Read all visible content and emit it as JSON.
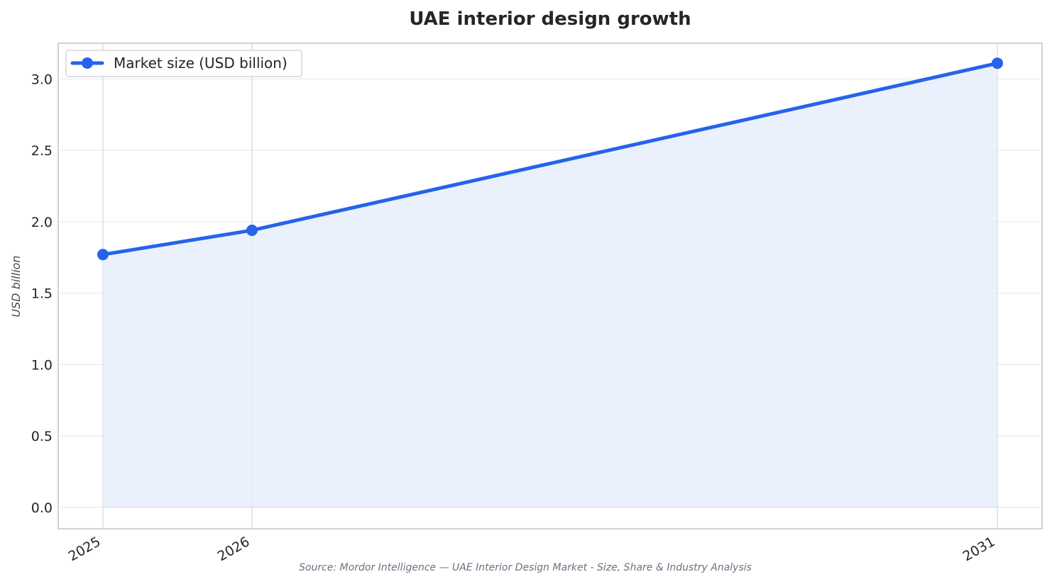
{
  "chart_data": {
    "type": "area",
    "title": "UAE interior design growth",
    "xlabel": "",
    "ylabel": "USD billion",
    "categories": [
      "2025",
      "2026",
      "2031"
    ],
    "x": [
      2025,
      2026,
      2031
    ],
    "series": [
      {
        "name": "Market size (USD billion)",
        "values": [
          1.77,
          1.94,
          3.11
        ],
        "color": "#2563eb"
      }
    ],
    "ylim": [
      -0.15,
      3.25
    ],
    "yticks": [
      "0.0",
      "0.5",
      "1.0",
      "1.5",
      "2.0",
      "2.5",
      "3.0"
    ],
    "grid": true,
    "legend_position": "top-left"
  },
  "source": "Source: Mordor Intelligence — UAE Interior Design Market - Size, Share & Industry Analysis",
  "colors": {
    "line": "#2563eb",
    "fill": "#e8eefb",
    "grid": "#e6e6e6",
    "vgrid": "#c8ccd2",
    "frame": "#c4c4c4"
  }
}
